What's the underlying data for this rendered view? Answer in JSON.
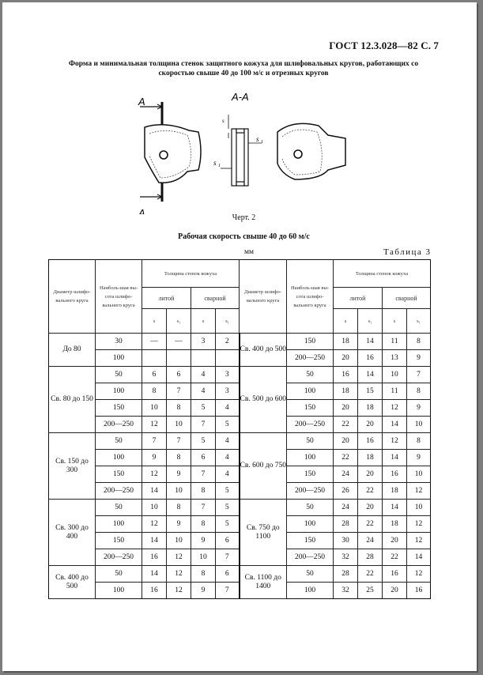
{
  "header": "ГОСТ 12.3.028—82 С. 7",
  "caption": {
    "line1": "Форма и минимальная толщина стенок защитного кожуха для шлифовальных кругов, работающих со",
    "line2": "скоростью свыше 40 до 100 м/с и отрезных кругов"
  },
  "drawing": {
    "section_mark": "A",
    "section_title": "A-A",
    "label_s": "s",
    "label_s1_top": "s",
    "label_s1_left": "s",
    "sub_1": "1"
  },
  "figure_caption": "Черт. 2",
  "speed_title": "Рабочая скорость свыше 40 до 60 м/с",
  "units": "мм",
  "table_label": "Таблица 3",
  "table": {
    "headers": {
      "diameter": "Диаметр шлифо-вального круга",
      "max_height": "Наиболь-шая вы-сота шлифо-вального круга",
      "wall_thickness": "Толщина стенок кожуха",
      "cast": "литой",
      "welded": "сварной",
      "s": "s",
      "s1": "s₁"
    },
    "left_groups": [
      {
        "diameter": "До 80",
        "rows": [
          [
            "30",
            "—",
            "—",
            "3",
            "2"
          ],
          [
            "100",
            "",
            "",
            "",
            ""
          ]
        ]
      },
      {
        "diameter": "Св. 80 до 150",
        "rows": [
          [
            "50",
            "6",
            "6",
            "4",
            "3"
          ],
          [
            "100",
            "8",
            "7",
            "4",
            "3"
          ],
          [
            "150",
            "10",
            "8",
            "5",
            "4"
          ],
          [
            "200—250",
            "12",
            "10",
            "7",
            "5"
          ]
        ]
      },
      {
        "diameter": "Св. 150 до 300",
        "rows": [
          [
            "50",
            "7",
            "7",
            "5",
            "4"
          ],
          [
            "100",
            "9",
            "8",
            "6",
            "4"
          ],
          [
            "150",
            "12",
            "9",
            "7",
            "4"
          ],
          [
            "200—250",
            "14",
            "10",
            "8",
            "5"
          ]
        ]
      },
      {
        "diameter": "Св. 300 до 400",
        "rows": [
          [
            "50",
            "10",
            "8",
            "7",
            "5"
          ],
          [
            "100",
            "12",
            "9",
            "8",
            "5"
          ],
          [
            "150",
            "14",
            "10",
            "9",
            "6"
          ],
          [
            "200—250",
            "16",
            "12",
            "10",
            "7"
          ]
        ]
      },
      {
        "diameter": "Св. 400 до 500",
        "rows": [
          [
            "50",
            "14",
            "12",
            "8",
            "6"
          ],
          [
            "100",
            "16",
            "12",
            "9",
            "7"
          ]
        ]
      }
    ],
    "right_groups": [
      {
        "diameter": "Св. 400 до 500",
        "rows": [
          [
            "150",
            "18",
            "14",
            "11",
            "8"
          ],
          [
            "200—250",
            "20",
            "16",
            "13",
            "9"
          ]
        ]
      },
      {
        "diameter": "Св. 500 до 600",
        "rows": [
          [
            "50",
            "16",
            "14",
            "10",
            "7"
          ],
          [
            "100",
            "18",
            "15",
            "11",
            "8"
          ],
          [
            "150",
            "20",
            "18",
            "12",
            "9"
          ],
          [
            "200—250",
            "22",
            "20",
            "14",
            "10"
          ]
        ]
      },
      {
        "diameter": "Св. 600 до 750",
        "rows": [
          [
            "50",
            "20",
            "16",
            "12",
            "8"
          ],
          [
            "100",
            "22",
            "18",
            "14",
            "9"
          ],
          [
            "150",
            "24",
            "20",
            "16",
            "10"
          ],
          [
            "200—250",
            "26",
            "22",
            "18",
            "12"
          ]
        ]
      },
      {
        "diameter": "Св. 750 до 1100",
        "rows": [
          [
            "50",
            "24",
            "20",
            "14",
            "10"
          ],
          [
            "100",
            "28",
            "22",
            "18",
            "12"
          ],
          [
            "150",
            "30",
            "24",
            "20",
            "12"
          ],
          [
            "200—250",
            "32",
            "28",
            "22",
            "14"
          ]
        ]
      },
      {
        "diameter": "Св. 1100 до 1400",
        "rows": [
          [
            "50",
            "28",
            "22",
            "16",
            "12"
          ],
          [
            "100",
            "32",
            "25",
            "20",
            "16"
          ]
        ]
      }
    ]
  }
}
